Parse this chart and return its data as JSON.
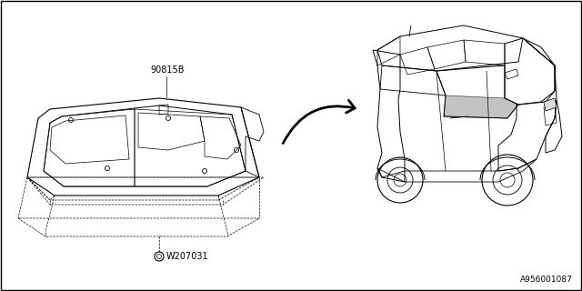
{
  "bg_color": "#ffffff",
  "border_color": "#000000",
  "line_color": "#000000",
  "label_90815B": "90815B",
  "label_W207031": "W207031",
  "label_ref": "A956001087",
  "font_size_labels": 7,
  "font_size_ref": 6.5
}
